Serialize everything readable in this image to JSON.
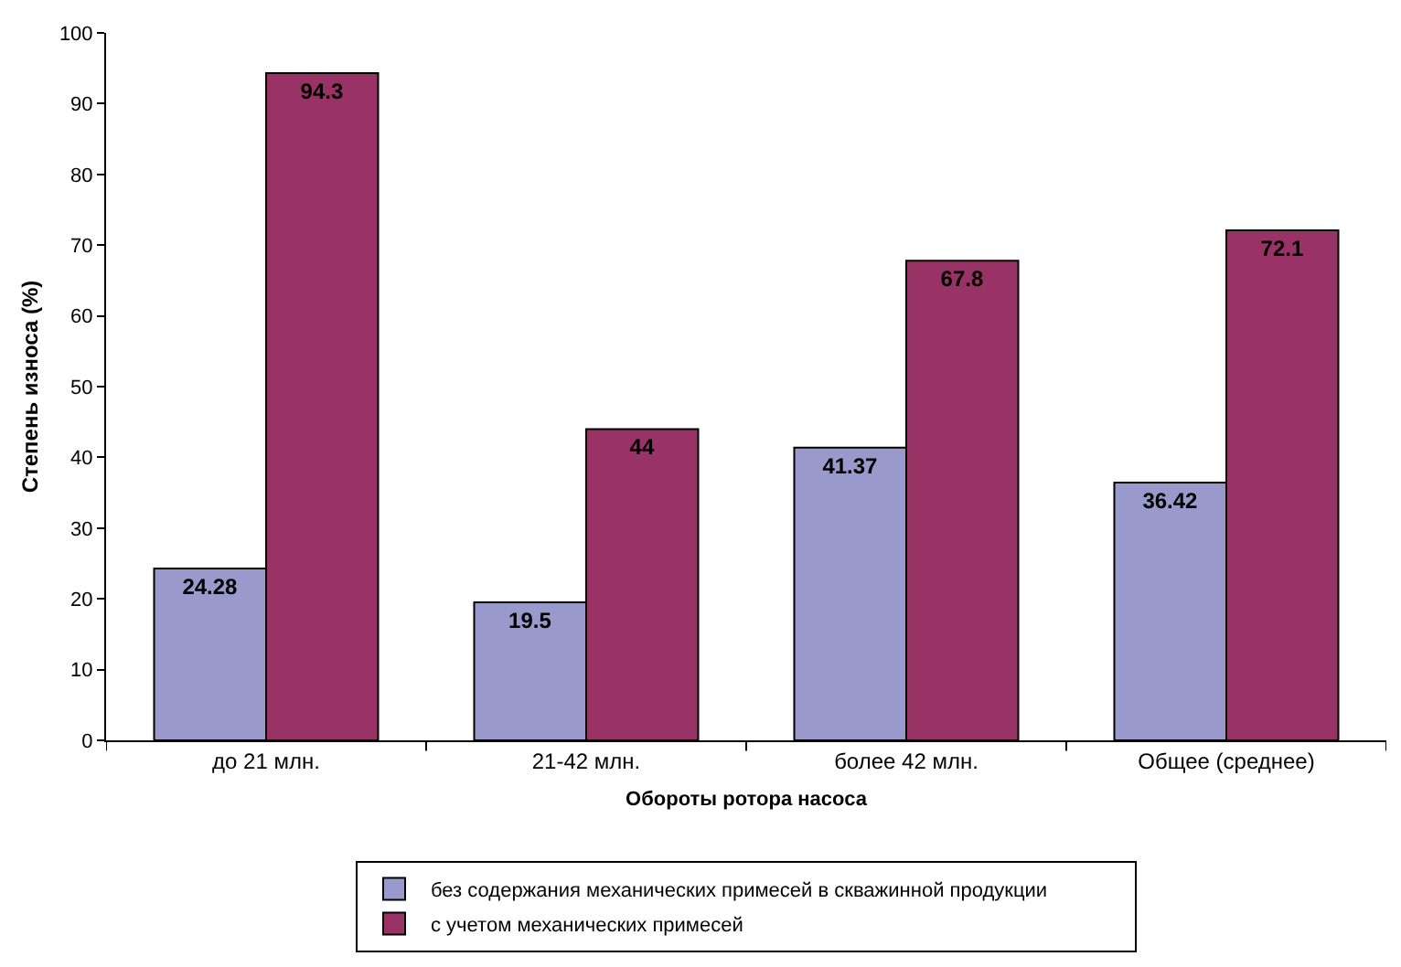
{
  "chart_data": {
    "type": "bar",
    "xlabel": "Обороты ротора насоса",
    "ylabel": "Степень износа (%)",
    "categories": [
      "до 21 млн.",
      "21-42 млн.",
      "более 42 млн.",
      "Общее (среднее)"
    ],
    "series": [
      {
        "name": "без содержания механических примесей в скважинной продукции",
        "color": "#9999cc",
        "values": [
          24.28,
          19.5,
          41.37,
          36.42
        ]
      },
      {
        "name": "с учетом механических примесей",
        "color": "#993366",
        "values": [
          94.3,
          44,
          67.8,
          72.1
        ]
      }
    ],
    "ylim": [
      0,
      100
    ],
    "yticks": [
      0,
      10,
      20,
      30,
      40,
      50,
      60,
      70,
      80,
      90,
      100
    ],
    "grid": false,
    "legend": "bottom",
    "data_labels": true
  }
}
